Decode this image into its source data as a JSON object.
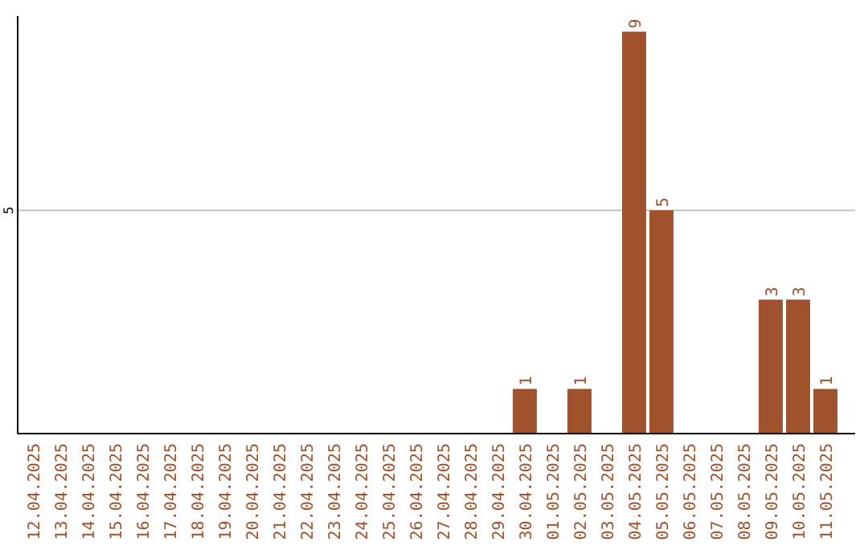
{
  "chart_data": {
    "type": "bar",
    "ylim": [
      0,
      9.35
    ],
    "yticks": [
      5
    ],
    "grid": "y",
    "data_labels": true,
    "color": "#a0522d",
    "categories": [
      "12.04.2025",
      "13.04.2025",
      "14.04.2025",
      "15.04.2025",
      "16.04.2025",
      "17.04.2025",
      "18.04.2025",
      "19.04.2025",
      "20.04.2025",
      "21.04.2025",
      "22.04.2025",
      "23.04.2025",
      "24.04.2025",
      "25.04.2025",
      "26.04.2025",
      "27.04.2025",
      "28.04.2025",
      "29.04.2025",
      "30.04.2025",
      "01.05.2025",
      "02.05.2025",
      "03.05.2025",
      "04.05.2025",
      "05.05.2025",
      "06.05.2025",
      "07.05.2025",
      "08.05.2025",
      "09.05.2025",
      "10.05.2025",
      "11.05.2025"
    ],
    "values": [
      null,
      null,
      null,
      null,
      null,
      null,
      null,
      null,
      null,
      null,
      null,
      null,
      null,
      null,
      null,
      null,
      null,
      null,
      1,
      null,
      1,
      null,
      9,
      5,
      null,
      null,
      null,
      3,
      3,
      1
    ]
  }
}
